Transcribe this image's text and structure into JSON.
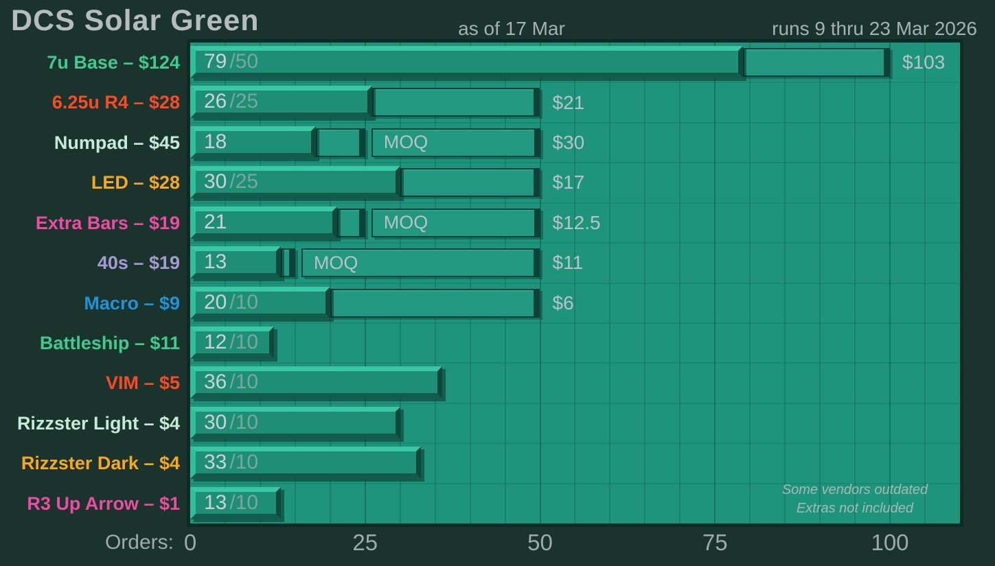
{
  "header": {
    "title": "DCS Solar Green",
    "as_of": "as of 17 Mar",
    "runs": "runs 9 thru 23 Mar 2026"
  },
  "axis": {
    "label": "Orders:",
    "tick_labels": [
      "0",
      "25",
      "50",
      "75",
      "100"
    ],
    "tick_values": [
      0,
      25,
      50,
      75,
      100
    ],
    "max_value": 110,
    "minor_grid_step": 5
  },
  "footnote": {
    "line1": "Some vendors outdated",
    "line2": "Extras not included"
  },
  "colors": {
    "background": "#1a332c",
    "plot_background": "#1e947c",
    "plot_border": "#0d2a24",
    "bar_fill": "#1e8e76",
    "bar_bevel_light": "#3ac8a4",
    "bar_bevel_dark": "#135c4b",
    "box_outline": "#0b4338",
    "title_text": "#b6bcbd",
    "muted_text": "#a6b1b0",
    "bar_number_text": "#cdd3d5",
    "bar_moq_suffix_text": "#79a89b",
    "price_text": "#b9c3c4",
    "green_label": "#3fcb8f",
    "red_label": "#fb4b24",
    "mint_label": "#c6e9d9",
    "amber_label": "#f8a81c",
    "pink_label": "#ee4ba3",
    "purple_label": "#a59ad1",
    "blue_label": "#2093d6"
  },
  "chart_data": {
    "type": "bar",
    "orientation": "horizontal",
    "title": "DCS Solar Green",
    "as_of": "17 Mar",
    "period": "9 thru 23 Mar 2026",
    "xlabel": "Orders",
    "xlim": [
      0,
      110
    ],
    "x_ticks": [
      0,
      25,
      50,
      75,
      100
    ],
    "grid": "minor vertical every 5 orders, row separators horizontal",
    "legend": "none",
    "items": [
      {
        "label": "7u Base – $124",
        "name": "7u Base",
        "unit_price": "$124",
        "color": "#3fcb8f",
        "orders": 79,
        "moq": 50,
        "bar_text": "79",
        "bar_suffix": "/50",
        "segments": [
          {
            "from": 79,
            "to": 100,
            "text": ""
          }
        ],
        "next_price": "$103",
        "next_price_at": 100
      },
      {
        "label": "6.25u R4 – $28",
        "name": "6.25u R4",
        "unit_price": "$28",
        "color": "#fb4b24",
        "orders": 26,
        "moq": 25,
        "bar_text": "26",
        "bar_suffix": "/25",
        "segments": [
          {
            "from": 26,
            "to": 50,
            "text": ""
          }
        ],
        "next_price": "$21",
        "next_price_at": 50
      },
      {
        "label": "Numpad – $45",
        "name": "Numpad",
        "unit_price": "$45",
        "color": "#c6e9d9",
        "orders": 18,
        "moq": 25,
        "bar_text": "18",
        "bar_suffix": "",
        "segments": [
          {
            "from": 18,
            "to": 25,
            "text": ""
          },
          {
            "from": 25,
            "to": 50,
            "text": "MOQ"
          }
        ],
        "next_price": "$30",
        "next_price_at": 50
      },
      {
        "label": "LED – $28",
        "name": "LED",
        "unit_price": "$28",
        "color": "#f8a81c",
        "orders": 30,
        "moq": 25,
        "bar_text": "30",
        "bar_suffix": "/25",
        "segments": [
          {
            "from": 30,
            "to": 50,
            "text": ""
          }
        ],
        "next_price": "$17",
        "next_price_at": 50
      },
      {
        "label": "Extra Bars – $19",
        "name": "Extra Bars",
        "unit_price": "$19",
        "color": "#ee4ba3",
        "orders": 21,
        "moq": 25,
        "bar_text": "21",
        "bar_suffix": "",
        "segments": [
          {
            "from": 21,
            "to": 25,
            "text": ""
          },
          {
            "from": 25,
            "to": 50,
            "text": "MOQ"
          }
        ],
        "next_price": "$12.5",
        "next_price_at": 50
      },
      {
        "label": "40s – $19",
        "name": "40s",
        "unit_price": "$19",
        "color": "#a59ad1",
        "orders": 13,
        "moq": 15,
        "bar_text": "13",
        "bar_suffix": "",
        "segments": [
          {
            "from": 13,
            "to": 15,
            "text": ""
          },
          {
            "from": 15,
            "to": 50,
            "text": "MOQ"
          }
        ],
        "next_price": "$11",
        "next_price_at": 50
      },
      {
        "label": "Macro – $9",
        "name": "Macro",
        "unit_price": "$9",
        "color": "#2093d6",
        "orders": 20,
        "moq": 10,
        "bar_text": "20",
        "bar_suffix": "/10",
        "segments": [
          {
            "from": 20,
            "to": 50,
            "text": ""
          }
        ],
        "next_price": "$6",
        "next_price_at": 50
      },
      {
        "label": "Battleship – $11",
        "name": "Battleship",
        "unit_price": "$11",
        "color": "#3fcb8f",
        "orders": 12,
        "moq": 10,
        "bar_text": "12",
        "bar_suffix": "/10",
        "segments": [],
        "next_price": "",
        "next_price_at": null
      },
      {
        "label": "VIM – $5",
        "name": "VIM",
        "unit_price": "$5",
        "color": "#fb4b24",
        "orders": 36,
        "moq": 10,
        "bar_text": "36",
        "bar_suffix": "/10",
        "segments": [],
        "next_price": "",
        "next_price_at": null
      },
      {
        "label": "Rizzster Light – $4",
        "name": "Rizzster Light",
        "unit_price": "$4",
        "color": "#c6e9d9",
        "orders": 30,
        "moq": 10,
        "bar_text": "30",
        "bar_suffix": "/10",
        "segments": [],
        "next_price": "",
        "next_price_at": null
      },
      {
        "label": "Rizzster Dark – $4",
        "name": "Rizzster Dark",
        "unit_price": "$4",
        "color": "#f8a81c",
        "orders": 33,
        "moq": 10,
        "bar_text": "33",
        "bar_suffix": "/10",
        "segments": [],
        "next_price": "",
        "next_price_at": null
      },
      {
        "label": "R3 Up Arrow – $1",
        "name": "R3 Up Arrow",
        "unit_price": "$1",
        "color": "#ee4ba3",
        "orders": 13,
        "moq": 10,
        "bar_text": "13",
        "bar_suffix": "/10",
        "segments": [],
        "next_price": "",
        "next_price_at": null
      }
    ]
  }
}
